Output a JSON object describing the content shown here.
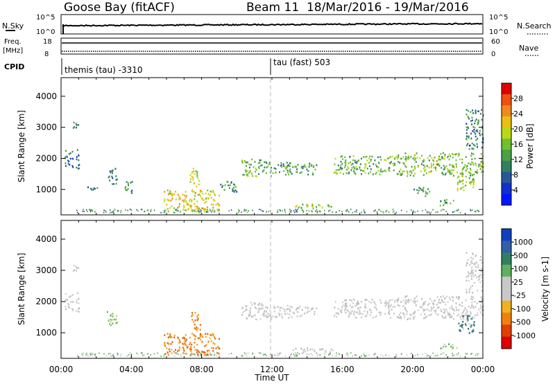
{
  "header": {
    "station": "Goose Bay (fitACF)",
    "beam_info": "Beam 11  18/Mar/2016 - 19/Mar/2016"
  },
  "status_panels": {
    "nsky_label": "N.Sky",
    "nsky_ticks": [
      "10^5",
      "10^0"
    ],
    "nsearch_label": "N.Search",
    "nsearch_ticks": [
      "10^5",
      "10^0"
    ],
    "freq_label_1": "Freq.",
    "freq_label_2": "[MHz]",
    "freq_ticks": [
      "18",
      "8"
    ],
    "nave_label": "Nave",
    "nave_ticks": [
      "60",
      "0"
    ],
    "cpid_label": "CPID",
    "cpid_entries": [
      "themis (tau) -3310",
      "tau (fast) 503"
    ]
  },
  "chart_data": [
    {
      "type": "heatmap",
      "panel": "power",
      "ylabel": "Slant Range [km]",
      "ylim": [
        180,
        4600
      ],
      "yticks": [
        "4000",
        "3000",
        "2000",
        "1000"
      ],
      "colorbar_label": "Power [dB]",
      "colorbar_ticks": [
        "28",
        "24",
        "20",
        "16",
        "12",
        "8",
        "4"
      ],
      "colorbar_colors": [
        "#e00000",
        "#f05010",
        "#f08820",
        "#e8c010",
        "#b8d818",
        "#70c030",
        "#48a048",
        "#308060",
        "#285898",
        "#1030d0",
        "#0018ff"
      ],
      "echo_regions": [
        {
          "x": [
            0.2,
            1.0
          ],
          "y": [
            1700,
            2300
          ],
          "level": 0.25
        },
        {
          "x": [
            0.6,
            1.0
          ],
          "y": [
            3000,
            3200
          ],
          "level": 0.3
        },
        {
          "x": [
            1.5,
            2.1
          ],
          "y": [
            1000,
            1100
          ],
          "level": 0.3
        },
        {
          "x": [
            2.6,
            3.2
          ],
          "y": [
            1200,
            1700
          ],
          "level": 0.3
        },
        {
          "x": [
            3.6,
            4.1
          ],
          "y": [
            900,
            1300
          ],
          "level": 0.3
        },
        {
          "x": [
            5.8,
            9.0
          ],
          "y": [
            300,
            1000
          ],
          "level": 0.65
        },
        {
          "x": [
            7.3,
            7.9
          ],
          "y": [
            1100,
            1700
          ],
          "level": 0.6
        },
        {
          "x": [
            9.0,
            10.0
          ],
          "y": [
            900,
            1300
          ],
          "level": 0.35
        },
        {
          "x": [
            10.2,
            12.0
          ],
          "y": [
            1450,
            2000
          ],
          "level": 0.45
        },
        {
          "x": [
            12.0,
            14.5
          ],
          "y": [
            1500,
            1900
          ],
          "level": 0.4
        },
        {
          "x": [
            13.0,
            15.5
          ],
          "y": [
            400,
            550
          ],
          "level": 0.5
        },
        {
          "x": [
            15.5,
            19.0
          ],
          "y": [
            1500,
            2100
          ],
          "level": 0.45
        },
        {
          "x": [
            19.0,
            24.0
          ],
          "y": [
            1450,
            2200
          ],
          "level": 0.5
        },
        {
          "x": [
            20.0,
            21.0
          ],
          "y": [
            800,
            1100
          ],
          "level": 0.4
        },
        {
          "x": [
            21.5,
            22.5
          ],
          "y": [
            500,
            700
          ],
          "level": 0.45
        },
        {
          "x": [
            22.5,
            23.5
          ],
          "y": [
            1000,
            1600
          ],
          "level": 0.55
        },
        {
          "x": [
            23.0,
            24.0
          ],
          "y": [
            2300,
            3600
          ],
          "level": 0.3
        }
      ]
    },
    {
      "type": "heatmap",
      "panel": "velocity",
      "xlabel": "Time UT",
      "ylabel": "Slant Range [km]",
      "ylim": [
        180,
        4600
      ],
      "xlim": [
        0,
        24
      ],
      "xticks": [
        "00:00",
        "04:00",
        "08:00",
        "12:00",
        "16:00",
        "20:00",
        "00:00"
      ],
      "yticks": [
        "4000",
        "3000",
        "2000",
        "1000"
      ],
      "colorbar_label": "Velocity [m s-1]",
      "colorbar_ticks": [
        "1000",
        "500",
        "100",
        "25",
        "-25",
        "-100",
        "-500",
        "-1000"
      ],
      "colorbar_colors": [
        "#1040c0",
        "#3060a8",
        "#308060",
        "#60b060",
        "#c8c8c8",
        "#c8c8c8",
        "#f0b020",
        "#f08010",
        "#e04000",
        "#e00000"
      ],
      "echo_regions": [
        {
          "x": [
            0.2,
            1.0
          ],
          "y": [
            1700,
            2300
          ],
          "vel": "grey"
        },
        {
          "x": [
            0.6,
            1.0
          ],
          "y": [
            3000,
            3200
          ],
          "vel": "grey"
        },
        {
          "x": [
            2.6,
            3.2
          ],
          "y": [
            1200,
            1700
          ],
          "vel": "green"
        },
        {
          "x": [
            5.8,
            9.0
          ],
          "y": [
            300,
            1000
          ],
          "vel": "orange"
        },
        {
          "x": [
            7.3,
            7.9
          ],
          "y": [
            1100,
            1700
          ],
          "vel": "orange"
        },
        {
          "x": [
            10.2,
            12.0
          ],
          "y": [
            1450,
            2000
          ],
          "vel": "grey"
        },
        {
          "x": [
            12.0,
            14.5
          ],
          "y": [
            1500,
            1900
          ],
          "vel": "grey"
        },
        {
          "x": [
            13.0,
            15.5
          ],
          "y": [
            400,
            550
          ],
          "vel": "grey"
        },
        {
          "x": [
            15.5,
            19.0
          ],
          "y": [
            1500,
            2100
          ],
          "vel": "grey"
        },
        {
          "x": [
            19.0,
            24.0
          ],
          "y": [
            1450,
            2200
          ],
          "vel": "grey"
        },
        {
          "x": [
            21.5,
            22.5
          ],
          "y": [
            500,
            700
          ],
          "vel": "green"
        },
        {
          "x": [
            22.5,
            23.5
          ],
          "y": [
            1000,
            1600
          ],
          "vel": "teal"
        },
        {
          "x": [
            23.0,
            24.0
          ],
          "y": [
            2300,
            3600
          ],
          "vel": "grey"
        }
      ]
    }
  ]
}
